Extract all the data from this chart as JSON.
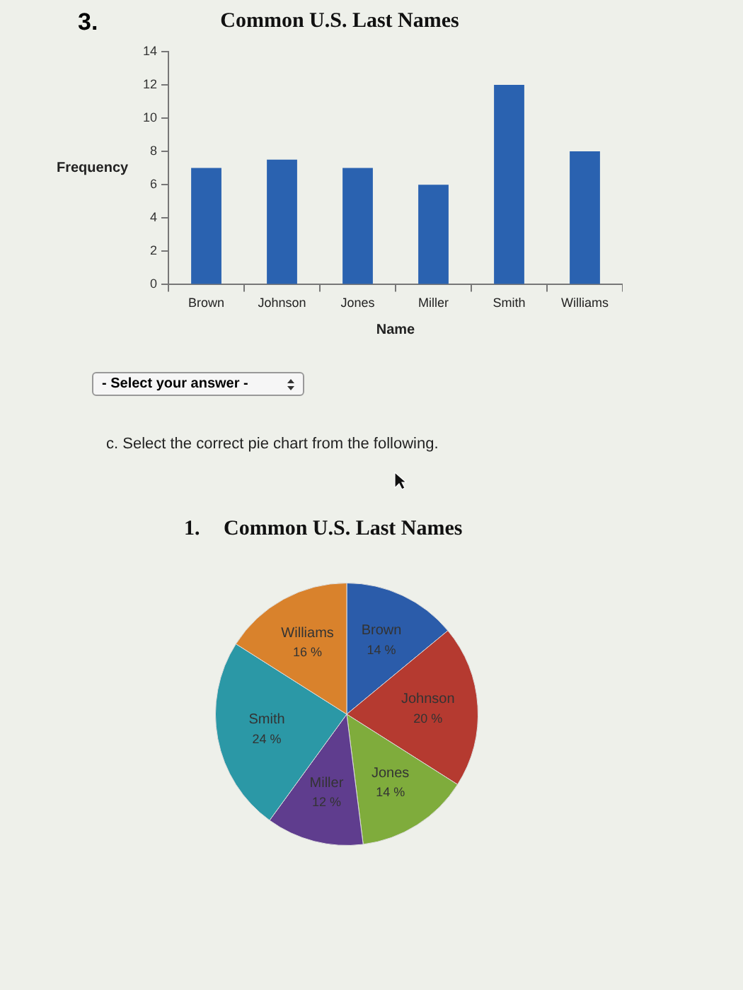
{
  "chart_data": [
    {
      "type": "bar",
      "title": "Common U.S. Last Names",
      "xlabel": "Name",
      "ylabel": "Frequency",
      "categories": [
        "Brown",
        "Johnson",
        "Jones",
        "Miller",
        "Smith",
        "Williams"
      ],
      "values": [
        7,
        7.5,
        7,
        6,
        12,
        8
      ],
      "color": "#2a62b0",
      "ylim": [
        0,
        14
      ],
      "yticks": [
        0,
        2,
        4,
        6,
        8,
        10,
        12,
        14
      ],
      "legend": false,
      "annotations": [
        "3.",
        "- Select your answer -"
      ]
    },
    {
      "type": "pie",
      "title": "Common U.S. Last Names",
      "categories": [
        "Brown",
        "Johnson",
        "Jones",
        "Miller",
        "Smith",
        "Williams"
      ],
      "values": [
        14,
        20,
        14,
        12,
        24,
        16
      ],
      "colors": [
        "#2b5caa",
        "#b53a30",
        "#7fac3c",
        "#5f3d8e",
        "#2b98a6",
        "#d9822c"
      ],
      "value_labels": [
        "14 %",
        "20 %",
        "14 %",
        "12 %",
        "24 %",
        "16 %"
      ],
      "legend": false,
      "annotations": [
        "c. Select the correct pie chart from the following.",
        "1."
      ]
    }
  ]
}
